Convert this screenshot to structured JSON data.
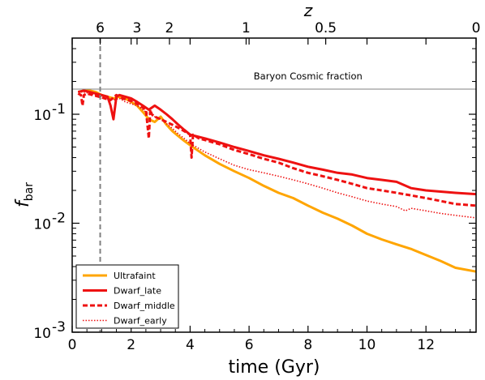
{
  "chart_data": {
    "type": "line",
    "xlabel": "time (Gyr)",
    "ylabel": "f_bar",
    "top_axis_label": "z",
    "xlim": [
      0,
      13.7
    ],
    "ylim": [
      0.001,
      0.5
    ],
    "yscale": "log",
    "grid": false,
    "legend_position": "bottom-left",
    "x_ticks": [
      0,
      2,
      4,
      6,
      8,
      10,
      12
    ],
    "x_tick_labels": [
      "0",
      "2",
      "4",
      "6",
      "8",
      "10",
      "12"
    ],
    "y_ticks": [
      0.001,
      0.01,
      0.1
    ],
    "y_tick_labels": [
      "10",
      "10",
      "10"
    ],
    "y_tick_exponents": [
      "-3",
      "-2",
      "-1"
    ],
    "top_ticks": [
      {
        "label": "6",
        "time": 0.95
      },
      {
        "label": "3",
        "time": 2.2
      },
      {
        "label": "2",
        "time": 3.3
      },
      {
        "label": "1",
        "time": 5.9
      },
      {
        "label": "0.5",
        "time": 8.6
      },
      {
        "label": "0",
        "time": 13.7
      }
    ],
    "vline": {
      "x": 0.95,
      "color": "#808080"
    },
    "hline": {
      "y": 0.17,
      "label": "Baryon Cosmic fraction",
      "color": "#808080"
    },
    "series": [
      {
        "name": "Ultrafaint",
        "color": "#ffa500",
        "dash": "solid",
        "x": [
          0.2,
          0.4,
          0.6,
          0.8,
          1.0,
          1.2,
          1.4,
          1.6,
          1.8,
          2.0,
          2.2,
          2.4,
          2.6,
          2.8,
          3.0,
          3.2,
          3.4,
          3.6,
          3.8,
          4.0,
          4.5,
          5.0,
          5.5,
          6.0,
          6.5,
          7.0,
          7.5,
          8.0,
          8.5,
          9.0,
          9.5,
          10.0,
          10.5,
          11.0,
          11.5,
          12.0,
          12.5,
          13.0,
          13.7
        ],
        "y": [
          0.16,
          0.165,
          0.165,
          0.16,
          0.15,
          0.145,
          0.14,
          0.145,
          0.14,
          0.13,
          0.12,
          0.105,
          0.09,
          0.085,
          0.095,
          0.08,
          0.07,
          0.063,
          0.057,
          0.052,
          0.042,
          0.035,
          0.03,
          0.026,
          0.022,
          0.019,
          0.017,
          0.0145,
          0.0125,
          0.011,
          0.0095,
          0.008,
          0.0071,
          0.0064,
          0.0058,
          0.0051,
          0.0045,
          0.0039,
          0.0036
        ]
      },
      {
        "name": "Dwarf_late",
        "color": "#ee1111",
        "dash": "solid",
        "x": [
          0.2,
          0.4,
          0.6,
          0.8,
          1.0,
          1.2,
          1.3,
          1.4,
          1.5,
          1.6,
          1.8,
          2.0,
          2.2,
          2.4,
          2.6,
          2.8,
          3.0,
          3.2,
          3.4,
          3.6,
          3.8,
          4.0,
          4.5,
          5.0,
          5.5,
          6.0,
          6.5,
          7.0,
          7.5,
          8.0,
          8.5,
          9.0,
          9.5,
          10.0,
          10.5,
          11.0,
          11.5,
          12.0,
          12.5,
          13.0,
          13.7
        ],
        "y": [
          0.16,
          0.165,
          0.16,
          0.155,
          0.15,
          0.145,
          0.12,
          0.09,
          0.145,
          0.15,
          0.145,
          0.14,
          0.13,
          0.12,
          0.11,
          0.12,
          0.11,
          0.1,
          0.09,
          0.08,
          0.072,
          0.065,
          0.06,
          0.055,
          0.05,
          0.046,
          0.042,
          0.039,
          0.036,
          0.033,
          0.031,
          0.029,
          0.028,
          0.026,
          0.025,
          0.024,
          0.021,
          0.02,
          0.0195,
          0.019,
          0.0185
        ]
      },
      {
        "name": "Dwarf_middle",
        "color": "#ee1111",
        "dash": "dashed",
        "x": [
          0.2,
          0.3,
          0.35,
          0.4,
          0.5,
          0.7,
          0.9,
          1.1,
          1.3,
          1.5,
          1.7,
          1.9,
          2.1,
          2.3,
          2.5,
          2.6,
          2.65,
          2.7,
          2.8,
          3.0,
          3.2,
          3.4,
          3.6,
          3.8,
          4.0,
          4.05,
          4.1,
          4.3,
          4.5,
          5.0,
          5.5,
          6.0,
          6.5,
          7.0,
          7.5,
          8.0,
          8.5,
          9.0,
          9.5,
          10.0,
          10.5,
          11.0,
          11.5,
          12.0,
          12.5,
          13.0,
          13.7
        ],
        "y": [
          0.155,
          0.15,
          0.12,
          0.15,
          0.155,
          0.15,
          0.145,
          0.14,
          0.135,
          0.15,
          0.14,
          0.135,
          0.13,
          0.12,
          0.11,
          0.06,
          0.11,
          0.1,
          0.095,
          0.09,
          0.085,
          0.08,
          0.075,
          0.07,
          0.065,
          0.04,
          0.065,
          0.06,
          0.058,
          0.053,
          0.047,
          0.043,
          0.039,
          0.036,
          0.032,
          0.029,
          0.027,
          0.025,
          0.023,
          0.021,
          0.02,
          0.019,
          0.018,
          0.017,
          0.016,
          0.015,
          0.0145
        ]
      },
      {
        "name": "Dwarf_early",
        "color": "#ee1111",
        "dash": "dotted",
        "x": [
          0.2,
          0.4,
          0.6,
          0.8,
          1.0,
          1.2,
          1.4,
          1.6,
          1.8,
          2.0,
          2.2,
          2.4,
          2.6,
          2.8,
          3.0,
          3.2,
          3.4,
          3.6,
          3.8,
          4.0,
          4.5,
          5.0,
          5.5,
          6.0,
          6.5,
          7.0,
          7.5,
          8.0,
          8.5,
          9.0,
          9.5,
          10.0,
          10.5,
          11.0,
          11.3,
          11.5,
          12.0,
          12.5,
          13.0,
          13.7
        ],
        "y": [
          0.16,
          0.16,
          0.155,
          0.15,
          0.145,
          0.14,
          0.135,
          0.14,
          0.13,
          0.125,
          0.12,
          0.11,
          0.1,
          0.095,
          0.09,
          0.082,
          0.074,
          0.066,
          0.06,
          0.054,
          0.045,
          0.039,
          0.034,
          0.031,
          0.029,
          0.027,
          0.025,
          0.023,
          0.021,
          0.019,
          0.0175,
          0.016,
          0.015,
          0.0142,
          0.013,
          0.0137,
          0.013,
          0.0123,
          0.0118,
          0.0112
        ]
      }
    ]
  }
}
